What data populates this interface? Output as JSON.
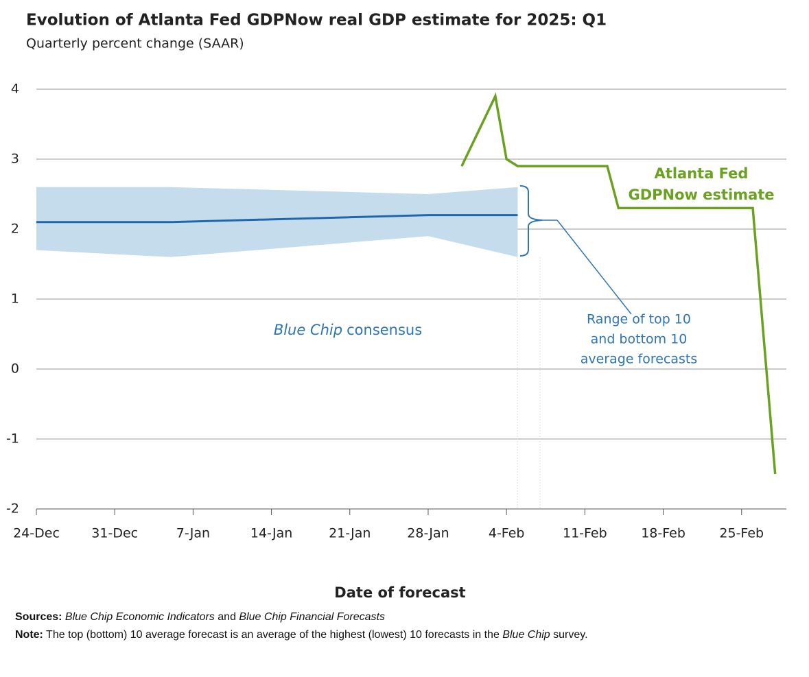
{
  "chart_data": {
    "type": "line",
    "title": "Evolution of Atlanta Fed GDPNow real GDP estimate for 2025: Q1",
    "subtitle": "Quarterly percent change (SAAR)",
    "x_label": "Date of forecast",
    "xlim": [
      "24-Dec",
      "1-Mar"
    ],
    "xticks": [
      "24-Dec",
      "31-Dec",
      "7-Jan",
      "14-Jan",
      "21-Jan",
      "28-Jan",
      "4-Feb",
      "11-Feb",
      "18-Feb",
      "25-Feb"
    ],
    "ylim": [
      -2,
      4
    ],
    "yticks": [
      -2,
      -1,
      0,
      1,
      2,
      3,
      4
    ],
    "grid": true,
    "band": {
      "color": "#c5dcec",
      "x": [
        "24-Dec",
        "5-Jan",
        "28-Jan",
        "5-Feb"
      ],
      "upper": [
        2.6,
        2.6,
        2.5,
        2.6
      ],
      "lower": [
        1.7,
        1.6,
        1.9,
        1.6
      ]
    },
    "series": [
      {
        "color": "#2166ac",
        "x": [
          "24-Dec",
          "5-Jan",
          "28-Jan",
          "5-Feb"
        ],
        "values": [
          2.1,
          2.1,
          2.2,
          2.2
        ]
      },
      {
        "color": "#6aa120",
        "x": [
          "31-Jan",
          "3-Feb",
          "4-Feb",
          "5-Feb",
          "13-Feb",
          "14-Feb",
          "26-Feb",
          "28-Feb"
        ],
        "values": [
          2.9,
          3.9,
          3.0,
          2.9,
          2.9,
          2.3,
          2.3,
          -1.5
        ]
      }
    ],
    "gdpnow_label": [
      "Atlanta Fed",
      "GDPNow estimate"
    ],
    "consensus_label": [
      "Blue Chip",
      "consensus"
    ],
    "range_label": [
      "Range of top 10",
      "and bottom 10",
      "average forecasts"
    ]
  },
  "footer": {
    "sources": [
      "Sources:",
      "Blue Chip Economic Indicators",
      "and",
      "Blue Chip Financial Forecasts"
    ],
    "note": [
      "Note:",
      "The top (bottom) 10 average forecast is an average of the highest (lowest) 10 forecasts in the",
      "Blue Chip",
      "survey."
    ]
  }
}
